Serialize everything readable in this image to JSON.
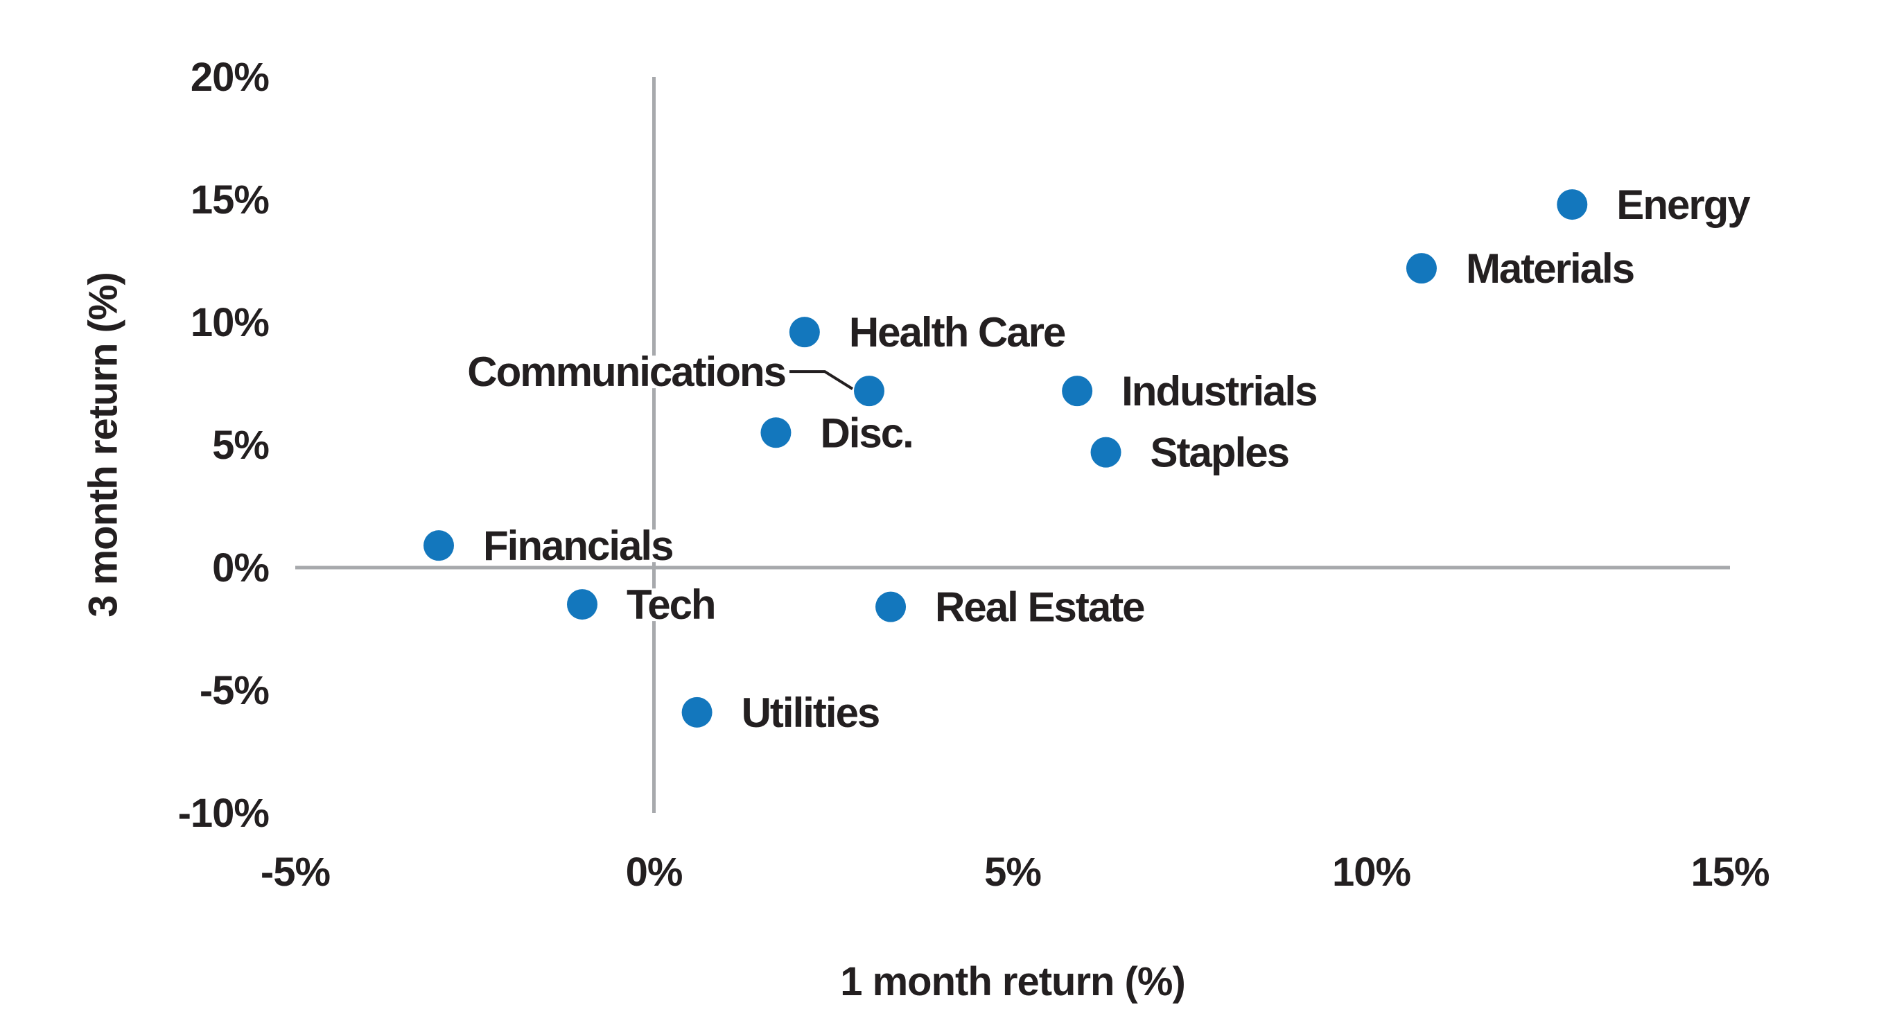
{
  "chart_data": {
    "type": "scatter",
    "xlabel": "1 month return (%)",
    "ylabel": "3 month return (%)",
    "xlim": [
      -5,
      15
    ],
    "ylim": [
      -10,
      20
    ],
    "grid": "off",
    "colors": {
      "point_blue": "#1377bd",
      "axis_gray": "#a7a9ac",
      "label_black": "#231f20",
      "background": "#ffffff"
    },
    "x_ticks": [
      {
        "label": "-5%",
        "value": -5
      },
      {
        "label": "0%",
        "value": 0
      },
      {
        "label": "5%",
        "value": 5
      },
      {
        "label": "10%",
        "value": 10
      },
      {
        "label": "15%",
        "value": 15
      }
    ],
    "y_ticks": [
      {
        "label": "20%",
        "value": 20
      },
      {
        "label": "15%",
        "value": 15
      },
      {
        "label": "10%",
        "value": 10
      },
      {
        "label": "5%",
        "value": 5
      },
      {
        "label": "0%",
        "value": 0
      },
      {
        "label": "-5%",
        "value": -5
      },
      {
        "label": "-10%",
        "value": -10
      }
    ],
    "points": [
      {
        "label": "Energy",
        "x": 12.8,
        "y": 14.8,
        "label_side": "right"
      },
      {
        "label": "Materials",
        "x": 10.7,
        "y": 12.2,
        "label_side": "right"
      },
      {
        "label": "Health Care",
        "x": 2.1,
        "y": 9.6,
        "label_side": "right"
      },
      {
        "label": "Communications",
        "x": 3.0,
        "y": 7.2,
        "label_side": "left",
        "leader_line": true
      },
      {
        "label": "Industrials",
        "x": 5.9,
        "y": 7.2,
        "label_side": "right"
      },
      {
        "label": "Disc.",
        "x": 1.7,
        "y": 5.5,
        "label_side": "right"
      },
      {
        "label": "Staples",
        "x": 6.3,
        "y": 4.7,
        "label_side": "right"
      },
      {
        "label": "Financials",
        "x": -3.0,
        "y": 0.9,
        "label_side": "right"
      },
      {
        "label": "Tech",
        "x": -1.0,
        "y": -1.5,
        "label_side": "right"
      },
      {
        "label": "Real Estate",
        "x": 3.3,
        "y": -1.6,
        "label_side": "right"
      },
      {
        "label": "Utilities",
        "x": 0.6,
        "y": -5.9,
        "label_side": "right"
      }
    ]
  }
}
